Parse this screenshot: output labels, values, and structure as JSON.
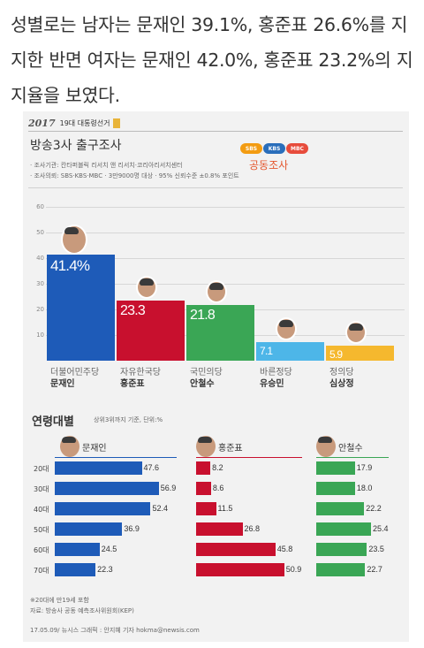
{
  "article": {
    "text": "성별로는 남자는 문재인 39.1%, 홍준표 26.6%를 지지한 반면 여자는 문재인 42.0%, 홍준표 23.2%의 지지율을 보였다."
  },
  "infographic": {
    "brand": {
      "logo": "2017",
      "text": "19대 대통령선거"
    },
    "exit_poll": {
      "title": "방송3사 출구조사",
      "info": [
        "· 조사기관: 칸타퍼블릭 리서치 앤 리서치·코리아리서치센터",
        "· 조사의뢰: SBS·KBS·MBC  · 3만9000명 대상 · 95% 신뢰수준 ±0.8% 포인트"
      ],
      "broadcasters": [
        "SBS",
        "KBS",
        "MBC"
      ],
      "joint_label": "공동조사"
    },
    "age_section": {
      "title": "연령대별",
      "subtitle": "상위3위까지 기준, 단위:%"
    },
    "footnotes": [
      "※20대에 만19세 포함",
      "자료: 방송사 공동 예측조사위원회(KEP)",
      "17.05.09/ 뉴시스 그래픽 : 안지혜 기자 hokma@newsis.com"
    ],
    "colors": {
      "moon": "#1e5bb8",
      "hong": "#c8102e",
      "ahn": "#3aa655",
      "yoo": "#4db6e8",
      "sim": "#f5b82e",
      "sbs": "#f39c12",
      "kbs": "#2a6ebb",
      "mbc": "#e74c3c"
    }
  },
  "chart_data": [
    {
      "type": "bar",
      "title": "방송3사 출구조사",
      "ylim": [
        0,
        60
      ],
      "yticks": [
        10,
        20,
        30,
        40,
        50,
        60
      ],
      "grid": true,
      "categories": [
        {
          "party": "더불어민주당",
          "candidate": "문재인"
        },
        {
          "party": "자유한국당",
          "candidate": "홍준표"
        },
        {
          "party": "국민의당",
          "candidate": "안철수"
        },
        {
          "party": "바른정당",
          "candidate": "유승민"
        },
        {
          "party": "정의당",
          "candidate": "심상정"
        }
      ],
      "values": [
        41.4,
        23.3,
        21.8,
        7.1,
        5.9
      ],
      "value_labels": [
        "41.4%",
        "23.3",
        "21.8",
        "7.1",
        "5.9"
      ],
      "colors": [
        "#1e5bb8",
        "#c8102e",
        "#3aa655",
        "#4db6e8",
        "#f5b82e"
      ]
    },
    {
      "type": "bar",
      "orientation": "horizontal",
      "title": "연령대별",
      "subtitle": "상위3위까지 기준, 단위:%",
      "categories": [
        "20대",
        "30대",
        "40대",
        "50대",
        "60대",
        "70대"
      ],
      "series": [
        {
          "name": "문재인",
          "values": [
            47.6,
            56.9,
            52.4,
            36.9,
            24.5,
            22.3
          ],
          "labels": [
            "47.6",
            "56.9",
            "52.4",
            "36.9",
            "24.5",
            "22.3"
          ],
          "color": "#1e5bb8"
        },
        {
          "name": "홍준표",
          "values": [
            8.2,
            8.6,
            11.5,
            26.8,
            45.8,
            50.9
          ],
          "labels": [
            "8.2",
            "8.6",
            "11.5",
            "26.8",
            "45.8",
            "50.9"
          ],
          "color": "#c8102e"
        },
        {
          "name": "안철수",
          "values": [
            17.9,
            18.0,
            22.2,
            25.4,
            23.5,
            22.7
          ],
          "labels": [
            "17.9",
            "18.0",
            "22.2",
            "25.4",
            "23.5",
            "22.7"
          ],
          "color": "#3aa655"
        }
      ]
    }
  ]
}
